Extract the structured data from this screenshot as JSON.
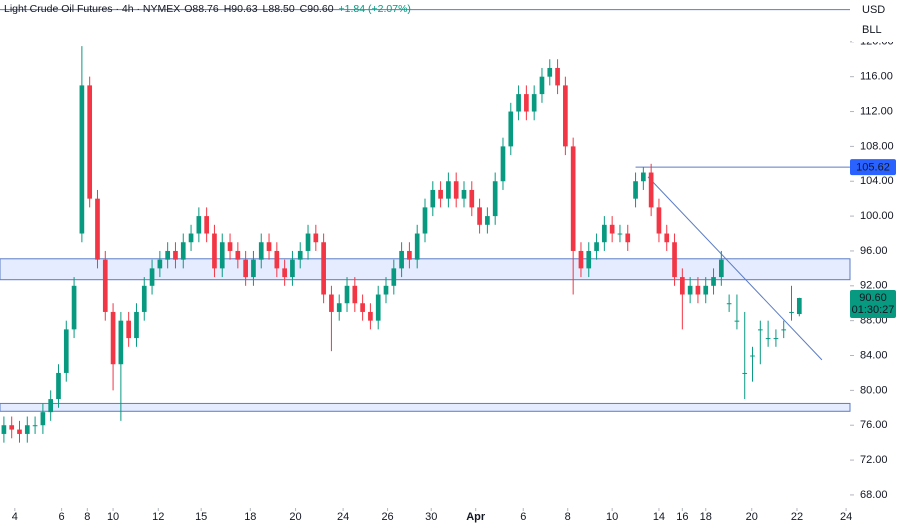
{
  "chart_data": {
    "type": "candlestick",
    "header": [
      "Light Crude Oil Futures · 4h · NYMEX",
      "O88.76",
      "H90.63",
      "L88.50",
      "C90.60",
      "+1.84 (+2.07%)"
    ],
    "currency": "USD",
    "unit": "BLL",
    "up_color": "#089981",
    "down_color": "#f23645",
    "line_color": "#5b7cc4",
    "zone_color": "rgba(41,98,255,0.12)",
    "ylim": [
      66.5,
      124.8
    ],
    "yticks": [
      {
        "value": 68,
        "label": "68.00"
      },
      {
        "value": 72,
        "label": "72.00"
      },
      {
        "value": 76,
        "label": "76.00"
      },
      {
        "value": 80,
        "label": "80.00"
      },
      {
        "value": 84,
        "label": "84.00"
      },
      {
        "value": 88,
        "label": "88.00"
      },
      {
        "value": 92,
        "label": "92.00"
      },
      {
        "value": 96,
        "label": "96.00"
      },
      {
        "value": 100,
        "label": "100.00"
      },
      {
        "value": 104,
        "label": "104.00"
      },
      {
        "value": 108,
        "label": "108.00"
      },
      {
        "value": 112,
        "label": "112.00"
      },
      {
        "value": 116,
        "label": "116.00"
      },
      {
        "value": 120,
        "label": "120.00"
      }
    ],
    "xlim": [
      -0.5,
      108.5
    ],
    "xticks": [
      {
        "value": 1.4,
        "label": "4"
      },
      {
        "value": 7.4,
        "label": "6"
      },
      {
        "value": 10.7,
        "label": "8"
      },
      {
        "value": 14.0,
        "label": "10"
      },
      {
        "value": 19.8,
        "label": "12"
      },
      {
        "value": 25.3,
        "label": "15"
      },
      {
        "value": 31.6,
        "label": "18"
      },
      {
        "value": 37.4,
        "label": "20"
      },
      {
        "value": 43.5,
        "label": "24"
      },
      {
        "value": 49.2,
        "label": "26"
      },
      {
        "value": 54.8,
        "label": "30"
      },
      {
        "value": 60.5,
        "label": "Apr"
      },
      {
        "value": 66.6,
        "label": "6"
      },
      {
        "value": 72.3,
        "label": "8"
      },
      {
        "value": 78.0,
        "label": "10"
      },
      {
        "value": 84.0,
        "label": "14"
      },
      {
        "value": 87.0,
        "label": "16"
      },
      {
        "value": 90.0,
        "label": "18"
      },
      {
        "value": 95.9,
        "label": "20"
      },
      {
        "value": 101.7,
        "label": "22"
      },
      {
        "value": 108.0,
        "label": "24"
      }
    ],
    "open": [
      75,
      76,
      75.5,
      75,
      76,
      76,
      77.5,
      79,
      82,
      87,
      98,
      115,
      102,
      95,
      89,
      83,
      88,
      86,
      89,
      92,
      94,
      95,
      96,
      95,
      97,
      98,
      100,
      98,
      94,
      97,
      96,
      95,
      93,
      95,
      97,
      96,
      94,
      93,
      95,
      96,
      98,
      97,
      91,
      89,
      90,
      92,
      90,
      89,
      88,
      91,
      92,
      94,
      96,
      95,
      98,
      101,
      103,
      102,
      104,
      102,
      103,
      101,
      99,
      100,
      104,
      108,
      112,
      114,
      112,
      114,
      116,
      117,
      115,
      108,
      96,
      94,
      96,
      97,
      99,
      98,
      98,
      102,
      104,
      105,
      101,
      98,
      97,
      93,
      91,
      92,
      91,
      92,
      93,
      90,
      88,
      82,
      84,
      87,
      86,
      86,
      87,
      89,
      88.76
    ],
    "high": [
      77,
      77,
      76.5,
      77,
      77,
      78.5,
      80,
      83,
      88,
      93,
      119.5,
      116,
      103,
      96,
      90,
      89,
      89,
      90,
      93,
      95,
      96,
      97,
      97,
      98,
      99,
      101,
      101,
      99,
      98,
      98,
      97,
      96,
      96,
      98,
      98,
      97,
      95,
      96,
      97,
      99,
      99,
      98,
      92,
      91,
      93,
      93,
      91,
      90,
      92,
      93,
      95,
      97,
      97,
      99,
      102,
      104,
      104,
      105,
      105,
      104,
      104,
      102,
      101,
      105,
      109,
      113,
      115,
      115,
      115,
      117,
      118,
      118,
      116,
      109,
      97,
      97,
      98,
      100,
      100,
      99,
      99,
      105,
      105.6,
      106,
      102,
      99,
      98,
      94,
      93,
      93,
      93,
      94,
      96,
      91,
      91,
      89,
      85,
      88,
      88,
      87,
      88,
      92,
      90.63
    ],
    "low": [
      74,
      74.5,
      74,
      74,
      75,
      75,
      76.5,
      78,
      81,
      86,
      97,
      101,
      94,
      88,
      80,
      76.5,
      85,
      85,
      88,
      91,
      93,
      94,
      94,
      94,
      96,
      97,
      97,
      93,
      93,
      95,
      94,
      92,
      92,
      94,
      95,
      93,
      92,
      92,
      94,
      95,
      96,
      90,
      84.5,
      88,
      89,
      89,
      88,
      87,
      87,
      90,
      91,
      93,
      94,
      94,
      97,
      100,
      101,
      101,
      101,
      101,
      100,
      98,
      98,
      99,
      103,
      107,
      111,
      111,
      111,
      113,
      115,
      114,
      107,
      91,
      93,
      93,
      95,
      96,
      97,
      97,
      96,
      101,
      103,
      100,
      97,
      96,
      92,
      87,
      90,
      90,
      90,
      91,
      92,
      89,
      87,
      79,
      81,
      83,
      85,
      85,
      86,
      88,
      88.5
    ],
    "close": [
      76,
      75.5,
      75,
      76,
      76,
      77.5,
      79,
      82,
      87,
      92,
      115,
      102,
      95,
      89,
      83,
      88,
      86,
      89,
      92,
      94,
      95,
      96,
      95,
      97,
      98,
      100,
      98,
      94,
      97,
      96,
      95,
      93,
      95,
      97,
      96,
      94,
      93,
      95,
      96,
      98,
      97,
      91,
      89,
      90,
      92,
      90,
      89,
      88,
      91,
      92,
      94,
      96,
      95,
      98,
      101,
      103,
      102,
      104,
      102,
      103,
      101,
      99,
      100,
      104,
      108,
      112,
      114,
      112,
      114,
      116,
      117,
      115,
      108,
      96,
      94,
      96,
      97,
      99,
      98,
      98,
      97,
      104,
      105,
      101,
      98,
      97,
      93,
      91,
      92,
      91,
      92,
      93,
      95,
      90,
      88,
      82,
      84,
      87,
      86,
      86,
      87,
      89,
      90.6
    ],
    "top_line": 123.7,
    "zones": [
      {
        "from": 92.7,
        "to": 95.1
      },
      {
        "from": 77.6,
        "to": 78.5
      }
    ],
    "level": {
      "value": 105.62,
      "start": 81
    },
    "trendline": {
      "x": [
        82.6,
        104.9
      ],
      "y": [
        104.5,
        83.5
      ]
    },
    "last_price": {
      "value": 90.6,
      "label": "90.60"
    },
    "countdown": "01:30:27"
  }
}
